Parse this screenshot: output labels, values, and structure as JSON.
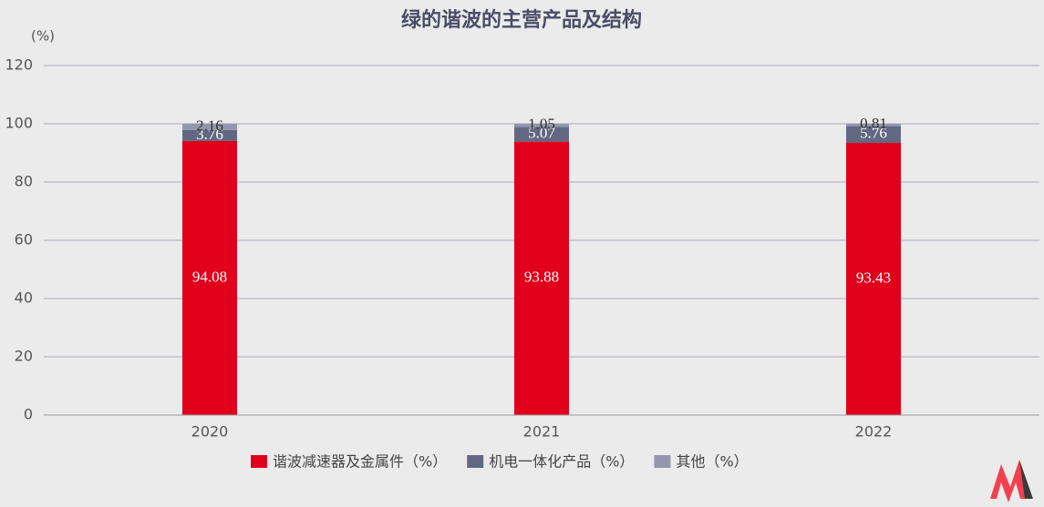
{
  "chart_data": {
    "type": "stacked_bar",
    "title": "绿的谐波的主营产品及结构",
    "y_label": "(%)",
    "categories": [
      "2020",
      "2021",
      "2022"
    ],
    "series": [
      {
        "name": "谐波减速器及金属件（%）",
        "color": "#e0001b",
        "values": [
          94.08,
          93.88,
          93.43
        ]
      },
      {
        "name": "机电一体化产品（%）",
        "color": "#636882",
        "values": [
          3.76,
          5.07,
          5.76
        ]
      },
      {
        "name": "其他（%）",
        "color": "#9496ad",
        "values": [
          2.16,
          1.05,
          0.81
        ]
      }
    ],
    "ylim": [
      0,
      120
    ],
    "yticks": [
      0,
      20,
      40,
      60,
      80,
      100,
      120
    ],
    "grid": true,
    "legend": "bottom"
  }
}
